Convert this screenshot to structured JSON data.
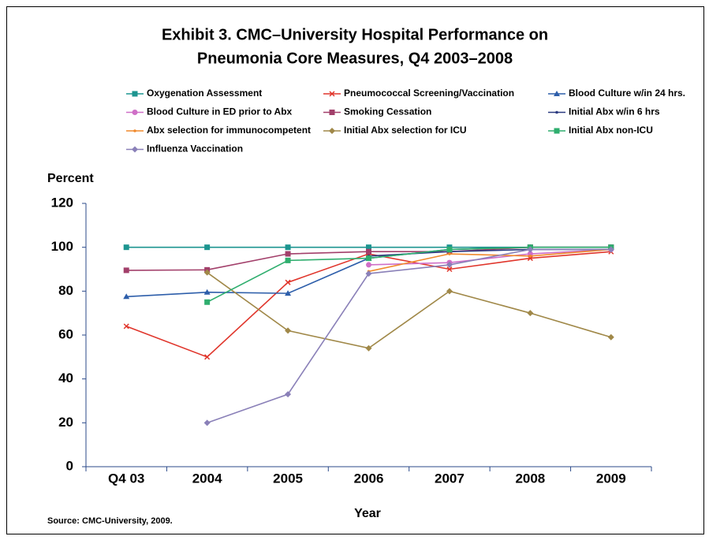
{
  "chart_data": {
    "type": "line",
    "title": [
      "Exhibit 3. CMC–University Hospital Performance on",
      "Pneumonia Core Measures, Q4 2003–2008"
    ],
    "y_label": "Percent",
    "x_label": "Year",
    "source": "Source: CMC-University, 2009.",
    "categories": [
      "Q4 03",
      "2004",
      "2005",
      "2006",
      "2007",
      "2008",
      "2009"
    ],
    "ylim": [
      0,
      120
    ],
    "yticks": [
      0,
      20,
      40,
      60,
      80,
      100,
      120
    ],
    "series": [
      {
        "name": "Oxygenation Assessment",
        "color": "#1d9590",
        "marker": "square",
        "values": [
          100,
          100,
          100,
          100,
          100,
          100,
          100
        ]
      },
      {
        "name": "Pneumococcal Screening/Vaccination",
        "color": "#e0352b",
        "marker": "x",
        "values": [
          64,
          50,
          84,
          97,
          90,
          95,
          98
        ]
      },
      {
        "name": "Blood Culture w/in 24 hrs.",
        "color": "#2d5eaa",
        "marker": "triangle",
        "values": [
          77.5,
          79.5,
          79,
          95,
          99,
          100,
          100
        ]
      },
      {
        "name": "Blood Culture in ED prior to Abx",
        "color": "#cf6fc7",
        "marker": "circle",
        "values": [
          null,
          null,
          null,
          92,
          93,
          97,
          99
        ]
      },
      {
        "name": "Smoking Cessation",
        "color": "#a23f6a",
        "marker": "square",
        "values": [
          89.5,
          89.7,
          97,
          98,
          98,
          100,
          100
        ]
      },
      {
        "name": "Initial Abx w/in 6 hrs",
        "color": "#2b3a80",
        "marker": "dot",
        "values": [
          null,
          null,
          null,
          96,
          98,
          99,
          99
        ]
      },
      {
        "name": "Abx selection for immunocompetent",
        "color": "#f08a2c",
        "marker": "dot",
        "values": [
          null,
          null,
          null,
          89,
          97,
          96,
          99
        ]
      },
      {
        "name": "Initial Abx selection for ICU",
        "color": "#a08848",
        "marker": "diamond",
        "values": [
          null,
          88.5,
          62,
          54,
          80,
          70,
          59
        ]
      },
      {
        "name": "Initial Abx non-ICU",
        "color": "#2fae6e",
        "marker": "square",
        "values": [
          null,
          75,
          94,
          95,
          99,
          100,
          100
        ]
      },
      {
        "name": "Influenza Vaccination",
        "color": "#8a80b8",
        "marker": "diamond",
        "values": [
          null,
          20,
          33,
          88,
          92,
          99,
          99
        ]
      }
    ]
  }
}
